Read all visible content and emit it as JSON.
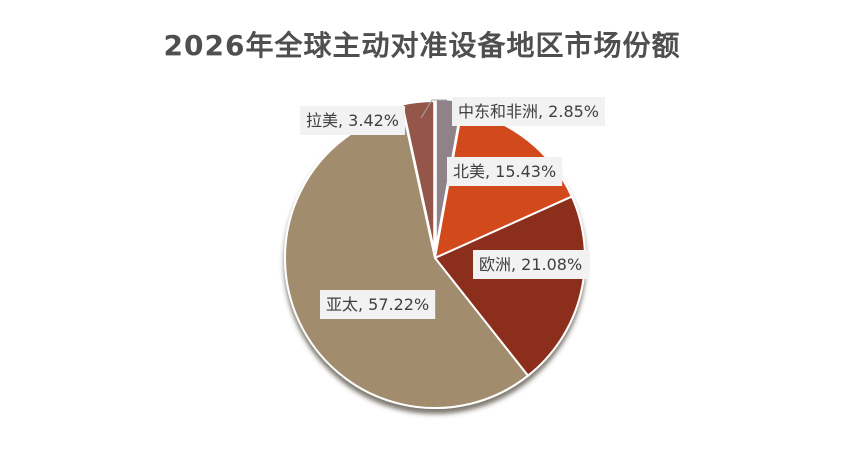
{
  "chart_data": {
    "type": "pie",
    "title": "2026年全球主动对准设备地区市场份额",
    "slices": [
      {
        "name": "中东和非洲",
        "value": 2.85,
        "label": "中东和非洲, 2.85%",
        "color": "#8f8389"
      },
      {
        "name": "北美",
        "value": 15.43,
        "label": "北美, 15.43%",
        "color": "#d24a1c"
      },
      {
        "name": "欧洲",
        "value": 21.08,
        "label": "欧洲, 21.08%",
        "color": "#8c2d1d"
      },
      {
        "name": "亚太",
        "value": 57.22,
        "label": "亚太, 57.22%",
        "color": "#a18c6d"
      },
      {
        "name": "拉美",
        "value": 3.42,
        "label": "拉美, 3.42%",
        "color": "#93574a"
      }
    ]
  }
}
